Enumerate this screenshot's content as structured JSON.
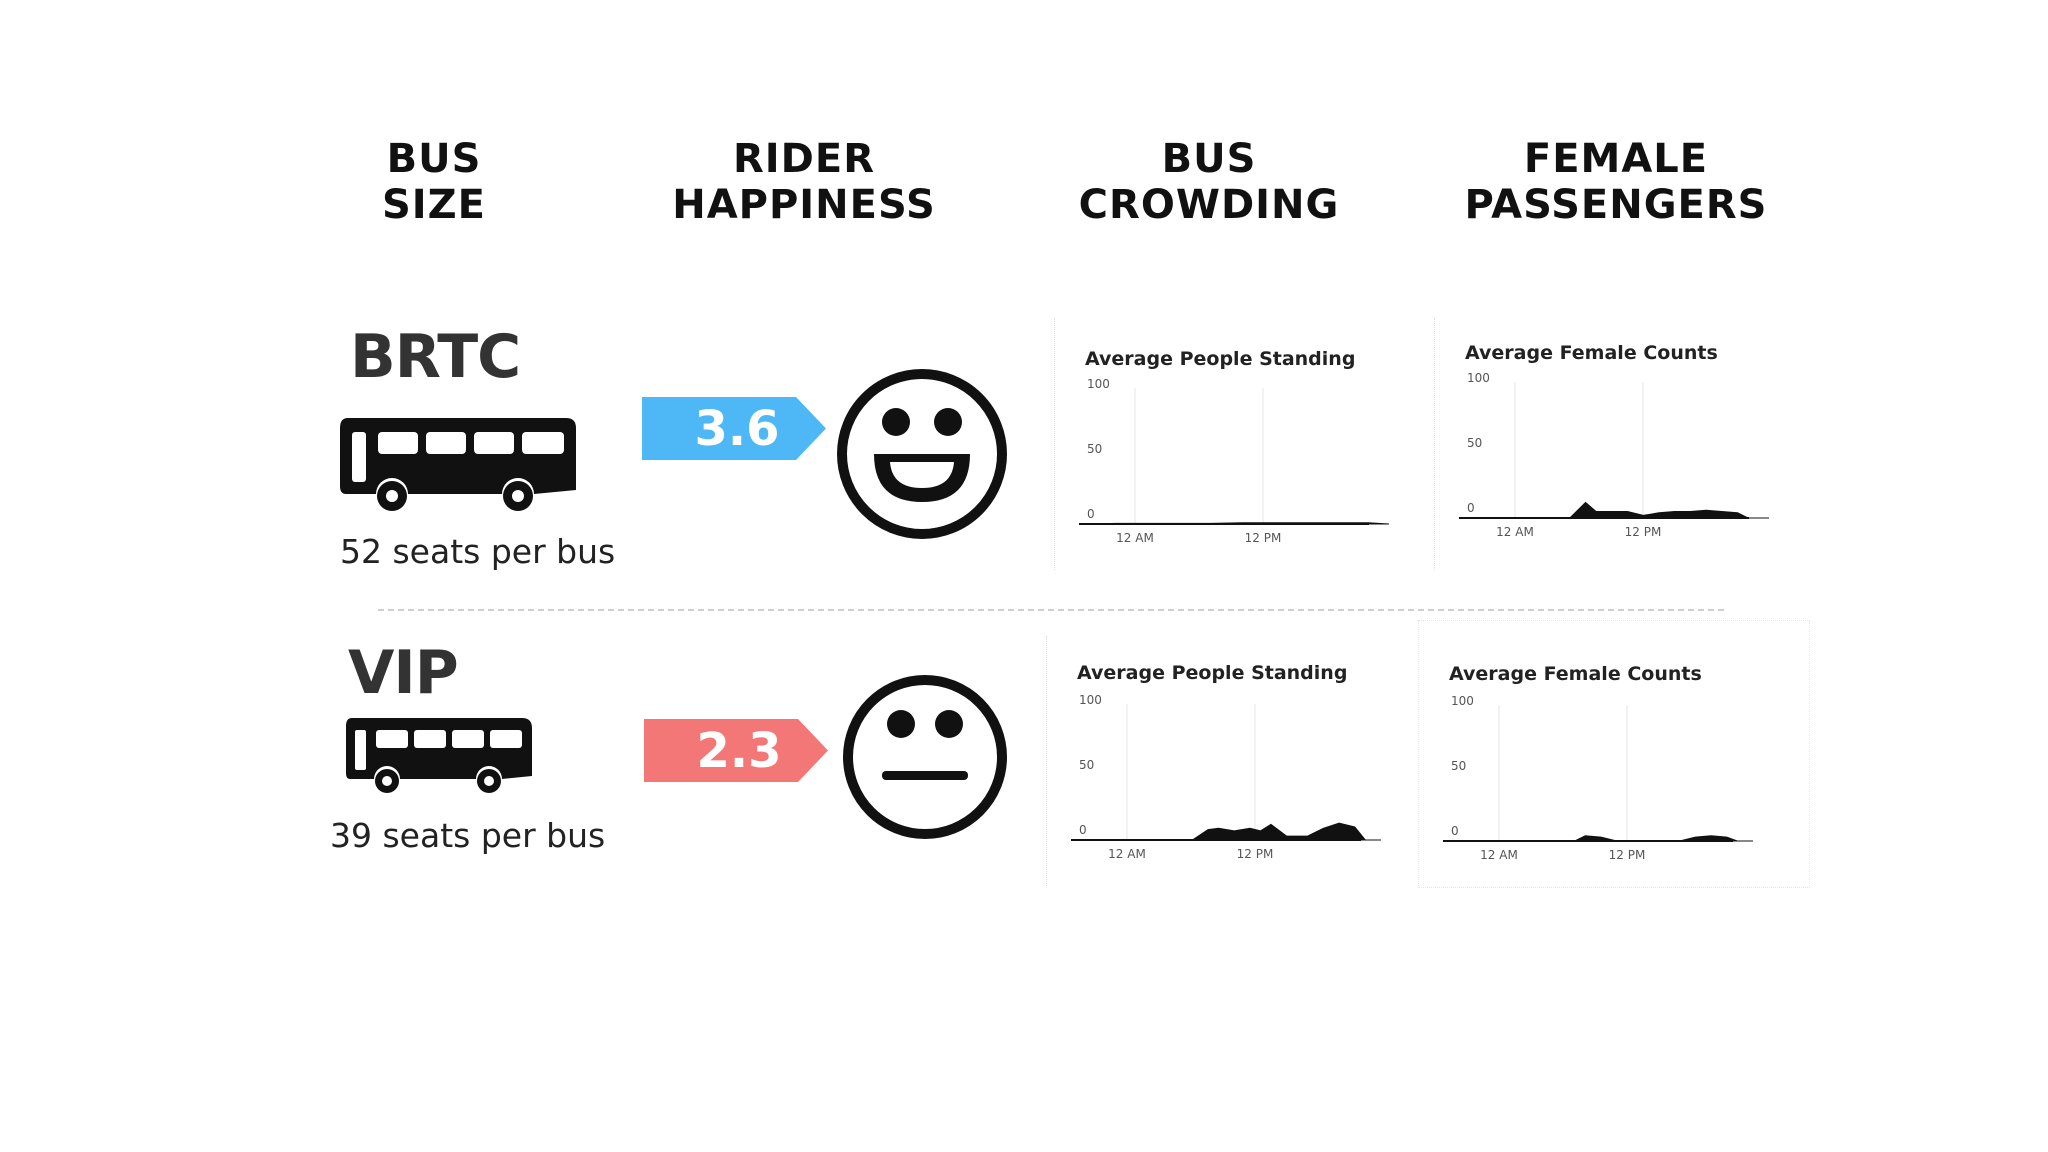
{
  "headers": [
    {
      "line1": "BUS",
      "line2": "SIZE"
    },
    {
      "line1": "RIDER",
      "line2": "HAPPINESS"
    },
    {
      "line1": "BUS",
      "line2": "CROWDING"
    },
    {
      "line1": "FEMALE",
      "line2": "PASSENGERS"
    }
  ],
  "rows": [
    {
      "name": "BRTC",
      "seats": "52 seats per bus",
      "rating": "3.6",
      "rating_color": "#4db8f5",
      "face": "smiling-face"
    },
    {
      "name": "VIP",
      "seats": "39 seats per bus",
      "rating": "2.3",
      "rating_color": "#f47777",
      "face": "neutral-face"
    }
  ],
  "chart_data": [
    {
      "type": "area",
      "title": "Average People Standing",
      "row": "BRTC",
      "ylim": [
        0,
        100
      ],
      "yticks": [
        "100",
        "50",
        "0"
      ],
      "xticks": [
        "12 AM",
        "12 PM"
      ],
      "x": [
        0,
        3,
        6,
        9,
        12,
        15,
        18,
        21,
        24,
        27,
        29
      ],
      "values": [
        0,
        0.5,
        0.5,
        0.5,
        0.5,
        1,
        1,
        1,
        1,
        1,
        0
      ]
    },
    {
      "type": "area",
      "title": "Average Female Counts",
      "row": "BRTC",
      "ylim": [
        0,
        100
      ],
      "yticks": [
        "100",
        "50",
        "0"
      ],
      "xticks": [
        "12 AM",
        "12 PM"
      ],
      "x": [
        0,
        6,
        10,
        11.5,
        12.5,
        14,
        15.5,
        17,
        18.5,
        20,
        21.5,
        23,
        24.5,
        26,
        27,
        29
      ],
      "values": [
        0,
        0,
        0,
        12,
        5,
        5,
        5,
        2,
        4,
        5,
        5,
        6,
        5,
        4,
        0,
        0
      ]
    },
    {
      "type": "area",
      "title": "Average People Standing",
      "row": "VIP",
      "ylim": [
        0,
        100
      ],
      "yticks": [
        "100",
        "50",
        "0"
      ],
      "xticks": [
        "12 AM",
        "12 PM"
      ],
      "x": [
        0,
        6,
        11,
        12.5,
        13.5,
        15,
        16.5,
        17.5,
        18.5,
        20,
        21,
        22,
        23.5,
        25,
        26.5,
        27.5,
        29
      ],
      "values": [
        0,
        0,
        0,
        8,
        9,
        7,
        9,
        7,
        12,
        3,
        3,
        3,
        9,
        13,
        10,
        0,
        0
      ]
    },
    {
      "type": "area",
      "title": "Average Female Counts",
      "row": "VIP",
      "ylim": [
        0,
        100
      ],
      "yticks": [
        "100",
        "50",
        "0"
      ],
      "xticks": [
        "12 AM",
        "12 PM"
      ],
      "x": [
        0,
        6,
        12,
        13,
        14.5,
        16,
        18,
        22,
        23.5,
        25,
        26.5,
        27.5,
        29
      ],
      "values": [
        0,
        0,
        0,
        4,
        3,
        0,
        0,
        0,
        3,
        4,
        3,
        0,
        0
      ]
    }
  ]
}
